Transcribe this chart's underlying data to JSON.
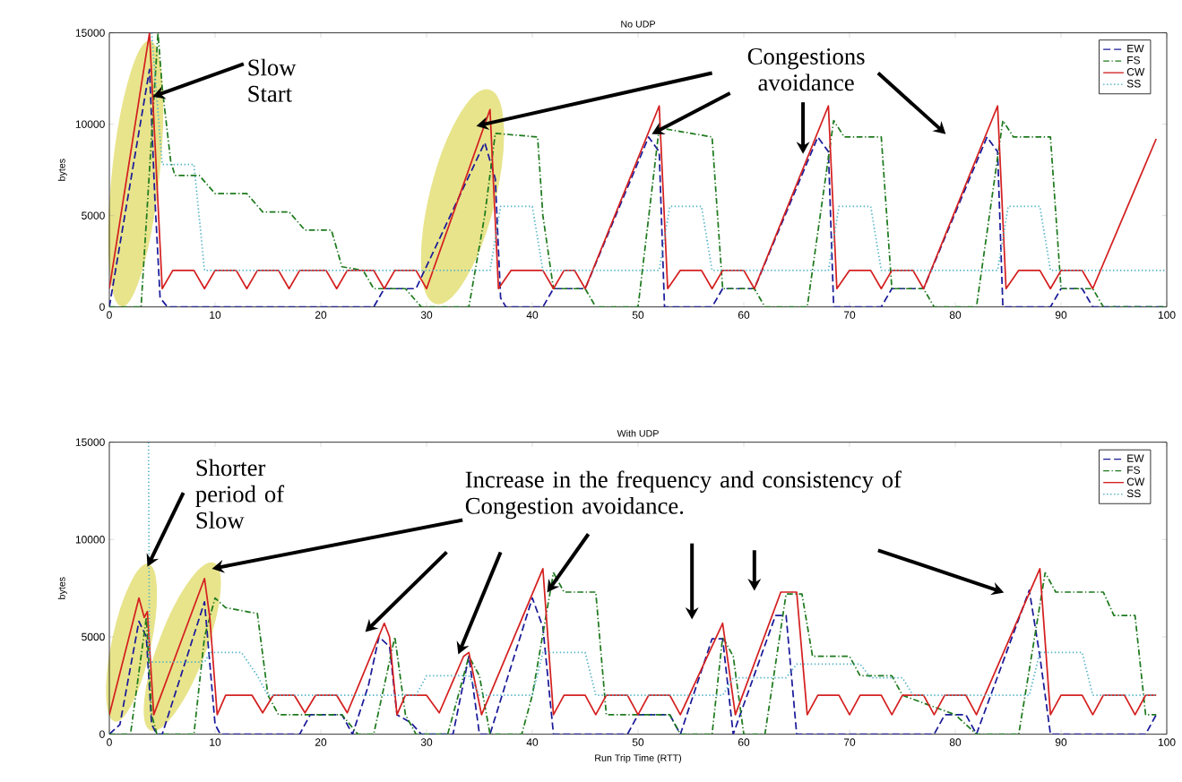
{
  "chart_data": [
    {
      "type": "line",
      "title": "No UDP",
      "ylabel": "bytes",
      "xlim": [
        0,
        100
      ],
      "ylim": [
        0,
        15000
      ],
      "xticks": [
        0,
        10,
        20,
        30,
        40,
        50,
        60,
        70,
        80,
        90,
        100
      ],
      "yticks": [
        0,
        5000,
        10000,
        15000
      ],
      "legend": "top right",
      "annotations": [
        {
          "text": "Slow Start",
          "x": 4.1,
          "y": 11500
        },
        "Congestions avoidance"
      ],
      "series": [
        {
          "name": "EW",
          "color": "#1a1a99",
          "line_style": "dashed",
          "x": [
            0,
            3.8,
            4.3,
            4.8,
            5.5,
            25,
            26,
            29,
            35.5,
            36.5,
            37,
            37.5,
            41,
            42,
            45,
            51,
            52,
            52.5,
            57,
            58,
            61,
            67,
            68,
            68.5,
            73,
            74,
            77,
            83,
            84,
            84.5,
            89,
            90,
            92,
            93,
            100
          ],
          "values": [
            0,
            13000,
            6000,
            500,
            0,
            0,
            1000,
            1000,
            9000,
            7000,
            500,
            0,
            0,
            1000,
            1000,
            9300,
            8500,
            0,
            0,
            1000,
            1000,
            9300,
            8500,
            0,
            0,
            1000,
            1000,
            9300,
            8500,
            0,
            0,
            1000,
            1000,
            0,
            0
          ]
        },
        {
          "name": "FS",
          "color": "#1e7a1e",
          "line_style": "dashdot",
          "x": [
            0,
            3,
            4.6,
            5,
            5.8,
            6.2,
            8.5,
            10,
            13,
            14.5,
            17,
            18.5,
            21,
            22,
            24,
            25,
            28,
            29.5,
            34,
            35.5,
            36.5,
            40.5,
            41,
            42,
            45,
            46,
            50,
            52,
            57,
            58,
            61,
            62,
            66,
            68.5,
            69.5,
            73,
            74,
            77,
            78,
            82,
            84.5,
            85.5,
            89,
            90,
            93,
            94,
            100
          ],
          "values": [
            0,
            0,
            15000,
            12000,
            8000,
            7200,
            7200,
            6200,
            6200,
            5200,
            5200,
            4200,
            4200,
            2200,
            2000,
            1000,
            1000,
            0,
            0,
            5000,
            9500,
            9300,
            5000,
            1000,
            1000,
            0,
            0,
            9800,
            9300,
            1000,
            1000,
            0,
            0,
            10200,
            9300,
            9300,
            1000,
            1000,
            0,
            0,
            10200,
            9300,
            9300,
            1000,
            1000,
            0,
            0
          ]
        },
        {
          "name": "CW",
          "color": "#d42020",
          "line_style": "solid",
          "x": [
            0,
            3.8,
            5,
            6,
            8,
            9,
            10,
            12,
            13,
            14,
            16,
            17,
            18,
            20.5,
            21.5,
            22.5,
            25,
            26,
            27,
            29,
            30,
            36,
            36.8,
            38,
            41,
            42,
            43,
            44,
            45,
            52,
            52.8,
            54,
            56,
            57,
            58,
            60,
            61,
            68,
            68.8,
            70,
            72,
            73,
            74,
            76,
            77,
            84,
            84.8,
            86,
            88,
            89,
            90,
            92,
            93,
            99
          ],
          "values": [
            1000,
            15000,
            1000,
            2000,
            2000,
            1000,
            2000,
            2000,
            1000,
            2000,
            2000,
            1000,
            2000,
            2000,
            1000,
            2000,
            2000,
            1000,
            2000,
            2000,
            1000,
            10800,
            1000,
            2000,
            2000,
            1000,
            2000,
            2000,
            1000,
            11000,
            1000,
            2000,
            2000,
            1000,
            2000,
            2000,
            1000,
            11000,
            1000,
            2000,
            2000,
            1000,
            2000,
            2000,
            1000,
            11000,
            1000,
            2000,
            2000,
            1000,
            2000,
            2000,
            1000,
            9200
          ]
        },
        {
          "name": "SS",
          "color": "#4fb0c6",
          "line_style": "dotted",
          "x": [
            4,
            5,
            8,
            9,
            36,
            37,
            40,
            41,
            52,
            53,
            56,
            57,
            68,
            69,
            72,
            73,
            84,
            85,
            88,
            89,
            100
          ],
          "values": [
            15000,
            7800,
            7800,
            2000,
            2000,
            5500,
            5500,
            2000,
            2000,
            5500,
            5500,
            2000,
            2000,
            5500,
            5500,
            2000,
            2000,
            5500,
            5500,
            2000,
            2000
          ]
        }
      ]
    },
    {
      "type": "line",
      "title": "With UDP",
      "xlabel": "Run Trip Time (RTT)",
      "ylabel": "bytes",
      "xlim": [
        0,
        100
      ],
      "ylim": [
        0,
        15000
      ],
      "xticks": [
        0,
        10,
        20,
        30,
        40,
        50,
        60,
        70,
        80,
        90,
        100
      ],
      "yticks": [
        0,
        5000,
        10000,
        15000
      ],
      "legend": "top right",
      "annotations": [
        {
          "text": "Shorter period of Slow",
          "x": 3.6,
          "y": 8600
        },
        {
          "text": "Increase in the frequency and consistency of Congestion avoidance.",
          "x": 41.4,
          "y": 7280
        }
      ],
      "series": [
        {
          "name": "EW",
          "color": "#1a1a99",
          "line_style": "dashed",
          "x": [
            0,
            1,
            2.8,
            3.5,
            4,
            4.5,
            5,
            9,
            10,
            10.5,
            18,
            19,
            22,
            23,
            24.5,
            25.5,
            26.5,
            27.2,
            28.5,
            29.5,
            32.5,
            34,
            35,
            36,
            40,
            41,
            42,
            49,
            50,
            53,
            54,
            57,
            58,
            59,
            63,
            64,
            65,
            78,
            79,
            81,
            82,
            87,
            88,
            89,
            98,
            99
          ],
          "values": [
            0,
            500,
            5800,
            5000,
            500,
            0,
            0,
            6800,
            500,
            0,
            0,
            1000,
            1000,
            0,
            2500,
            5000,
            4500,
            1000,
            600,
            0,
            0,
            4000,
            0,
            0,
            7000,
            5500,
            0,
            0,
            1000,
            1000,
            0,
            4900,
            4900,
            0,
            6100,
            6100,
            0,
            0,
            1000,
            1000,
            0,
            7400,
            4000,
            0,
            0,
            1000
          ]
        },
        {
          "name": "FS",
          "color": "#1e7a1e",
          "line_style": "dashdot",
          "x": [
            0,
            2,
            3.5,
            4,
            4.5,
            8,
            9,
            10,
            11,
            14,
            15,
            16,
            22,
            23.5,
            25,
            27,
            28,
            29,
            32,
            34,
            35,
            36,
            39,
            40,
            42,
            43,
            46,
            47,
            53,
            54,
            57,
            58,
            59,
            60,
            62,
            64,
            65.5,
            66.5,
            70,
            71,
            74,
            75,
            80,
            82,
            86,
            88.5,
            89.5,
            94,
            95,
            97,
            98,
            99
          ],
          "values": [
            0,
            0,
            6000,
            1000,
            0,
            0,
            5000,
            7000,
            6500,
            6200,
            2000,
            1000,
            1000,
            0,
            0,
            5000,
            1000,
            0,
            0,
            4000,
            3000,
            0,
            0,
            2000,
            8300,
            7300,
            7300,
            1000,
            1000,
            0,
            0,
            5000,
            4000,
            0,
            0,
            7200,
            7200,
            4000,
            4000,
            3000,
            3000,
            2000,
            1000,
            0,
            0,
            8300,
            7300,
            7300,
            6100,
            6100,
            1000,
            1000
          ]
        },
        {
          "name": "CW",
          "color": "#d42020",
          "line_style": "solid",
          "x": [
            0,
            2.8,
            3.3,
            3.6,
            4.2,
            9,
            9.5,
            10.2,
            11,
            13.5,
            14.5,
            15.5,
            17.5,
            18.5,
            19.5,
            21.5,
            22.5,
            26,
            26.5,
            27.2,
            28,
            30,
            31.2,
            33.5,
            34,
            35.2,
            41,
            42,
            43,
            45,
            46,
            47,
            49,
            50,
            51,
            53,
            54,
            58,
            59.2,
            63.5,
            65,
            66,
            67,
            69,
            70,
            71,
            73,
            74,
            75,
            77,
            78,
            79,
            81,
            82,
            88,
            89,
            90,
            92,
            93,
            94,
            96,
            97,
            98,
            99
          ],
          "values": [
            1000,
            7000,
            6000,
            6300,
            1000,
            8000,
            6000,
            1000,
            2000,
            2000,
            1100,
            2000,
            2000,
            1100,
            2000,
            2000,
            1100,
            5700,
            5000,
            1000,
            2000,
            2000,
            1100,
            4000,
            4200,
            1000,
            8500,
            1000,
            2000,
            2000,
            1000,
            2000,
            2000,
            1000,
            2000,
            2000,
            1000,
            5700,
            1000,
            7300,
            7300,
            1000,
            2000,
            2000,
            1000,
            2000,
            2000,
            1000,
            2000,
            2000,
            1000,
            2000,
            2000,
            1000,
            8500,
            1000,
            2000,
            2000,
            1000,
            2000,
            2000,
            1000,
            2000,
            2000
          ]
        },
        {
          "name": "SS",
          "color": "#4fb0c6",
          "line_style": "dotted",
          "x": [
            3.7,
            3.8,
            9,
            9.5,
            12.5,
            14,
            15,
            29,
            30,
            34,
            35,
            40,
            41,
            45,
            46,
            58,
            59,
            64,
            65,
            71,
            72,
            75,
            76,
            87,
            88,
            92,
            93,
            99
          ],
          "values": [
            15000,
            3700,
            3700,
            4200,
            4200,
            3000,
            2000,
            2000,
            3000,
            3000,
            2000,
            2000,
            4200,
            4200,
            2000,
            2000,
            2900,
            2900,
            3600,
            3600,
            2900,
            2900,
            2000,
            2000,
            4200,
            4200,
            2000,
            2000
          ]
        }
      ]
    }
  ]
}
